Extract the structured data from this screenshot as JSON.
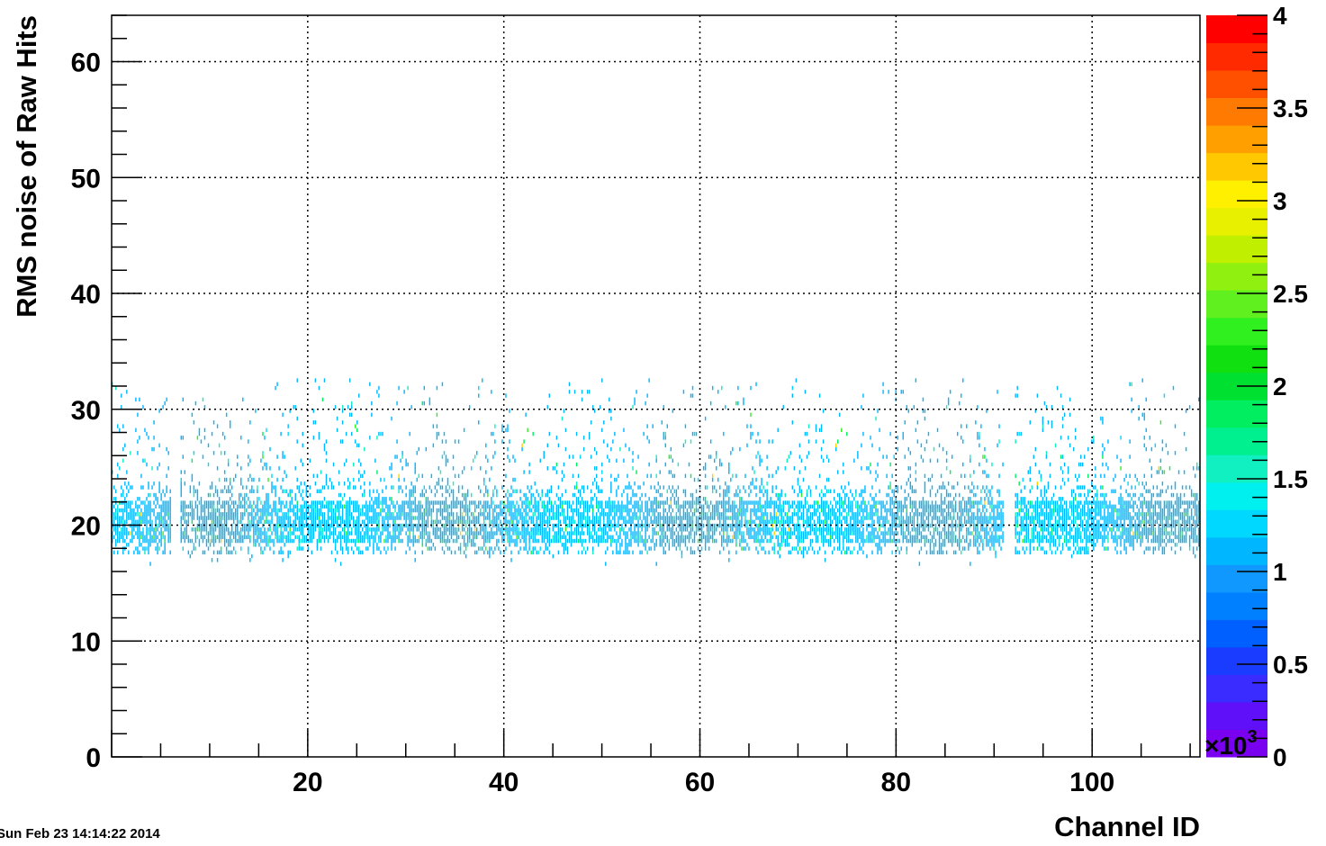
{
  "timestamp": "Sun Feb 23 14:14:22 2014",
  "chart_data": {
    "type": "heatmap",
    "title": "",
    "xlabel": "Channel ID",
    "ylabel": "RMS noise of Raw Hits",
    "xlim": [
      0,
      111
    ],
    "ylim": [
      0,
      64
    ],
    "x_ticks": [
      "20",
      "40",
      "60",
      "80",
      "100"
    ],
    "y_ticks": [
      "0",
      "10",
      "20",
      "30",
      "40",
      "50",
      "60"
    ],
    "grid": true,
    "colorbar": {
      "range": [
        0,
        4000
      ],
      "tick_labels": [
        "0",
        "0.5",
        "1",
        "1.5",
        "2",
        "2.5",
        "3",
        "3.5",
        "4"
      ],
      "exponent_label": "×10",
      "exponent_power": "3",
      "colors": [
        "#7a00f0",
        "#6010f8",
        "#3a2cff",
        "#1a3cff",
        "#0060ff",
        "#0080ff",
        "#1098ff",
        "#00b6ff",
        "#00d8ff",
        "#00f0f0",
        "#10f0c0",
        "#00f090",
        "#00ee60",
        "#00e030",
        "#10e010",
        "#30f020",
        "#60f020",
        "#90f010",
        "#c0f000",
        "#e8f000",
        "#fff000",
        "#ffc800",
        "#ffa000",
        "#ff7a00",
        "#ff5000",
        "#ff2a00",
        "#ff0000"
      ]
    },
    "band": {
      "core_center": 20.2,
      "core_half_width": 1.8,
      "core_color": "#00b6ff",
      "tail_low": 16.5,
      "tail_high": 32.5,
      "tail_color": "#00b6ff",
      "accent_colors": [
        "#10f0c0",
        "#00ee60",
        "#00d8ff",
        "#30f020",
        "#ffd000"
      ],
      "empty_channels": [
        6,
        91
      ],
      "dense_from": 92,
      "dense_to": 111
    }
  }
}
